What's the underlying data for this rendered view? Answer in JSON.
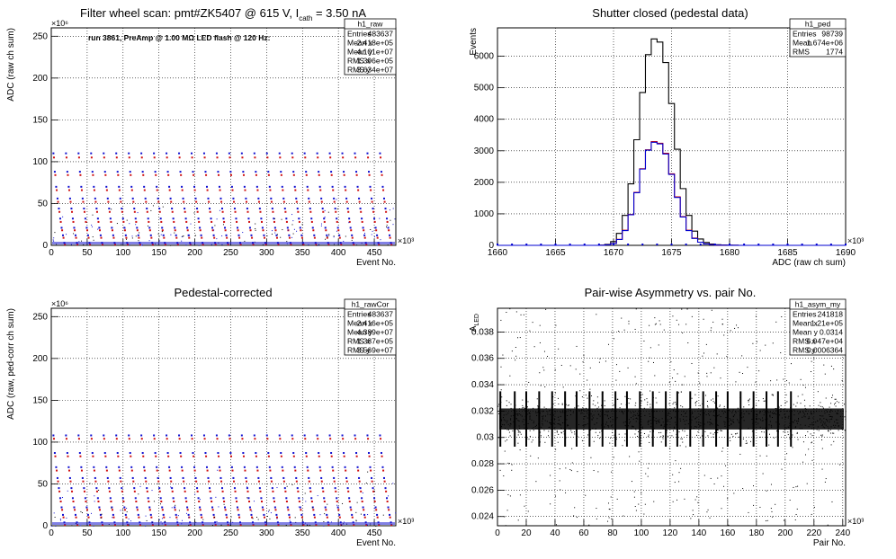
{
  "chart_data": [
    {
      "id": "raw",
      "type": "scatter",
      "title": "Filter wheel scan: pmt#ZK5407 @   615 V, I",
      "title_sub": "cath",
      "title_tail": " = 3.50 nA",
      "annotation": "run 3861, PreAmp @ 1.00 MΩ LED flash @  120 Hz:",
      "xlabel": "Event No.",
      "ylabel": "ADC (raw ch sum)",
      "x_exponent": "×10³",
      "y_exponent": "×10⁶",
      "xlim": [
        0,
        480
      ],
      "ylim": [
        0,
        260
      ],
      "xticks": [
        0,
        50,
        100,
        150,
        200,
        250,
        300,
        350,
        400,
        450
      ],
      "yticks": [
        0,
        50,
        100,
        150,
        200,
        250
      ],
      "grid": true,
      "stats": {
        "title": "h1_raw",
        "rows": [
          [
            "Entries",
            "483637"
          ],
          [
            "Mean x",
            "2.418e+05"
          ],
          [
            "Mean y",
            "4.101e+07"
          ],
          [
            "RMS x",
            "1.396e+05"
          ],
          [
            "RMS y",
            "3.634e+07"
          ]
        ]
      },
      "steps": [
        {
          "blue": 110,
          "red": 105
        },
        {
          "blue": 88,
          "red": 84
        },
        {
          "blue": 70,
          "red": 66
        },
        {
          "blue": 56,
          "red": 52
        },
        {
          "blue": 44,
          "red": 40
        },
        {
          "blue": 32,
          "red": 28
        },
        {
          "blue": 21,
          "red": 18
        },
        {
          "blue": 12,
          "red": 9
        },
        {
          "blue": 3,
          "red": 1
        }
      ],
      "cycle_start": 3,
      "cycle_step": 17.5,
      "cycles": 27
    },
    {
      "id": "ped",
      "type": "area",
      "title": "Shutter closed (pedestal data)",
      "xlabel": "ADC (raw ch sum)",
      "ylabel": "Events",
      "x_exponent": "×10³",
      "xlim": [
        1660,
        1690
      ],
      "ylim": [
        0,
        6900
      ],
      "xticks": [
        1660,
        1665,
        1670,
        1675,
        1680,
        1685,
        1690
      ],
      "yticks": [
        0,
        1000,
        2000,
        3000,
        4000,
        5000,
        6000
      ],
      "grid": true,
      "stats": {
        "title": "h1_ped",
        "rows": [
          [
            "Entries",
            "98739"
          ],
          [
            "Mean",
            "1.674e+06"
          ],
          [
            "RMS",
            "1774"
          ]
        ]
      },
      "x": [
        1669.0,
        1669.5,
        1670.0,
        1670.5,
        1671.0,
        1671.5,
        1672.0,
        1672.5,
        1673.0,
        1673.5,
        1674.0,
        1674.5,
        1675.0,
        1675.5,
        1676.0,
        1676.5,
        1677.0,
        1677.5,
        1678.0,
        1678.5,
        1679.0,
        1679.5,
        1680.0,
        1680.5,
        1681.0
      ],
      "series": [
        {
          "color": "#000000",
          "values": [
            5,
            30,
            120,
            380,
            950,
            1950,
            3350,
            4850,
            6050,
            6550,
            6450,
            5800,
            4500,
            3050,
            1800,
            950,
            450,
            200,
            90,
            40,
            20,
            10,
            5,
            2,
            0
          ]
        },
        {
          "color": "#d00000",
          "values": [
            3,
            15,
            60,
            190,
            480,
            980,
            1680,
            2430,
            3030,
            3290,
            3240,
            2920,
            2270,
            1540,
            910,
            480,
            230,
            100,
            45,
            20,
            10,
            5,
            2,
            1,
            0
          ]
        },
        {
          "color": "#0000d0",
          "values": [
            2,
            15,
            60,
            185,
            470,
            970,
            1670,
            2420,
            3020,
            3270,
            3220,
            2900,
            2250,
            1520,
            900,
            470,
            220,
            100,
            45,
            20,
            10,
            5,
            3,
            1,
            0
          ]
        }
      ]
    },
    {
      "id": "rawcor",
      "type": "scatter",
      "title": "Pedestal-corrected",
      "xlabel": "Event No.",
      "ylabel": "ADC (raw, ped-corr ch sum)",
      "x_exponent": "×10³",
      "y_exponent": "×10⁶",
      "xlim": [
        0,
        480
      ],
      "ylim": [
        0,
        260
      ],
      "xticks": [
        0,
        50,
        100,
        150,
        200,
        250,
        300,
        350,
        400,
        450
      ],
      "yticks": [
        0,
        50,
        100,
        150,
        200,
        250
      ],
      "grid": true,
      "stats": {
        "title": "h1_rawCor",
        "rows": [
          [
            "Entries",
            "483637"
          ],
          [
            "Mean x",
            "2.416e+05"
          ],
          [
            "Mean y",
            "4.389e+07"
          ],
          [
            "RMS x",
            "1.387e+05"
          ],
          [
            "RMS y",
            "3.569e+07"
          ]
        ]
      },
      "steps": [
        {
          "blue": 108,
          "red": 104
        },
        {
          "blue": 87,
          "red": 83
        },
        {
          "blue": 70,
          "red": 66
        },
        {
          "blue": 57,
          "red": 53
        },
        {
          "blue": 45,
          "red": 41
        },
        {
          "blue": 33,
          "red": 29
        },
        {
          "blue": 22,
          "red": 19
        },
        {
          "blue": 13,
          "red": 10
        },
        {
          "blue": 4,
          "red": 1
        }
      ],
      "cycle_start": 3,
      "cycle_step": 17.5,
      "cycles": 27
    },
    {
      "id": "asym",
      "type": "scatter",
      "title": "Pair-wise Asymmetry vs. pair No.",
      "xlabel": "Pair No.",
      "ylabel": "A",
      "ylabel_sub": "LED",
      "x_exponent": "×10³",
      "xlim": [
        0,
        242
      ],
      "ylim": [
        0.0233,
        0.0398
      ],
      "xticks": [
        0,
        20,
        40,
        60,
        80,
        100,
        120,
        140,
        160,
        180,
        200,
        220,
        240
      ],
      "xticks_display": [
        "0",
        "20",
        "40",
        "60",
        "80",
        "100",
        "120",
        "140",
        "160",
        "180",
        "200",
        "220",
        "240"
      ],
      "yticks": [
        0.024,
        0.026,
        0.028,
        0.03,
        0.032,
        0.034,
        0.036,
        0.038
      ],
      "yticks_display": [
        "0.024",
        "0.026",
        "0.028",
        "0.03",
        "0.032",
        "0.034",
        "0.036",
        "0.038"
      ],
      "grid": true,
      "stats": {
        "title": "h1_asym_my",
        "rows": [
          [
            "Entries",
            "241818"
          ],
          [
            "Mean x",
            "1.21e+05"
          ],
          [
            "Mean y",
            "0.0314"
          ],
          [
            "RMS x",
            "6.947e+04"
          ],
          [
            "RMS y",
            "0.0006364"
          ]
        ]
      },
      "band_center": 0.0314,
      "band_halfwidth": 0.0008,
      "spike_x": [
        2,
        12,
        20,
        29,
        38,
        47,
        55,
        64,
        73,
        82,
        90,
        99,
        108,
        117,
        125,
        134,
        143,
        152,
        160,
        169,
        178,
        187,
        195,
        204
      ],
      "spike_up": 0.0335,
      "spike_down": 0.0293
    }
  ]
}
